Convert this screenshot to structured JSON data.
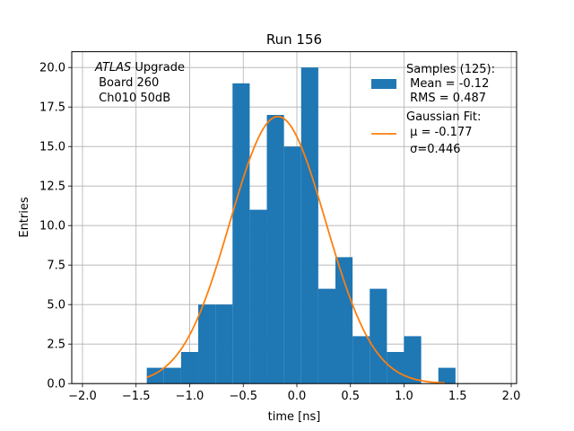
{
  "chart_data": {
    "type": "bar",
    "title": "Run 156",
    "xlabel": "time [ns]",
    "ylabel": "Entries",
    "xlim": [
      -2.1,
      2.05
    ],
    "ylim": [
      0,
      21
    ],
    "grid": true,
    "x_ticks": [
      -2.0,
      -1.5,
      -1.0,
      -0.5,
      0.0,
      0.5,
      1.0,
      1.5,
      2.0
    ],
    "x_tick_labels": [
      "−2.0",
      "−1.5",
      "−1.0",
      "−0.5",
      "0.0",
      "0.5",
      "1.0",
      "1.5",
      "2.0"
    ],
    "y_ticks": [
      0.0,
      2.5,
      5.0,
      7.5,
      10.0,
      12.5,
      15.0,
      17.5,
      20.0
    ],
    "y_tick_labels": [
      "0.0",
      "2.5",
      "5.0",
      "7.5",
      "10.0",
      "12.5",
      "15.0",
      "17.5",
      "20.0"
    ],
    "histogram": {
      "color": "#1f77b4",
      "bin_edges": [
        -1.4,
        -1.24,
        -1.08,
        -0.92,
        -0.76,
        -0.6,
        -0.44,
        -0.28,
        -0.12,
        0.04,
        0.2,
        0.36,
        0.52,
        0.68,
        0.84,
        1.0,
        1.16,
        1.32,
        1.48
      ],
      "counts": [
        1,
        1,
        2,
        5,
        5,
        19,
        11,
        17,
        15,
        20,
        6,
        8,
        3,
        6,
        2,
        3,
        0,
        1
      ]
    },
    "gaussian_fit": {
      "color": "#ff7f0e",
      "mu": -0.177,
      "sigma": 0.446,
      "amplitude": 16.9,
      "x_range": [
        -1.4,
        1.38
      ]
    },
    "legend": {
      "placement": "top-right",
      "entries": [
        {
          "lines": [
            "Samples (125):",
            " Mean = -0.12",
            " RMS = 0.487"
          ],
          "kind": "patch"
        },
        {
          "lines": [
            "Gaussian Fit:",
            " μ = -0.177",
            " σ=0.446"
          ],
          "kind": "line"
        }
      ]
    },
    "annotation": {
      "placement": "top-left",
      "italic": "ATLAS",
      "rest": " Upgrade",
      "lines": [
        " Board 260",
        " Ch010 50dB"
      ]
    }
  }
}
